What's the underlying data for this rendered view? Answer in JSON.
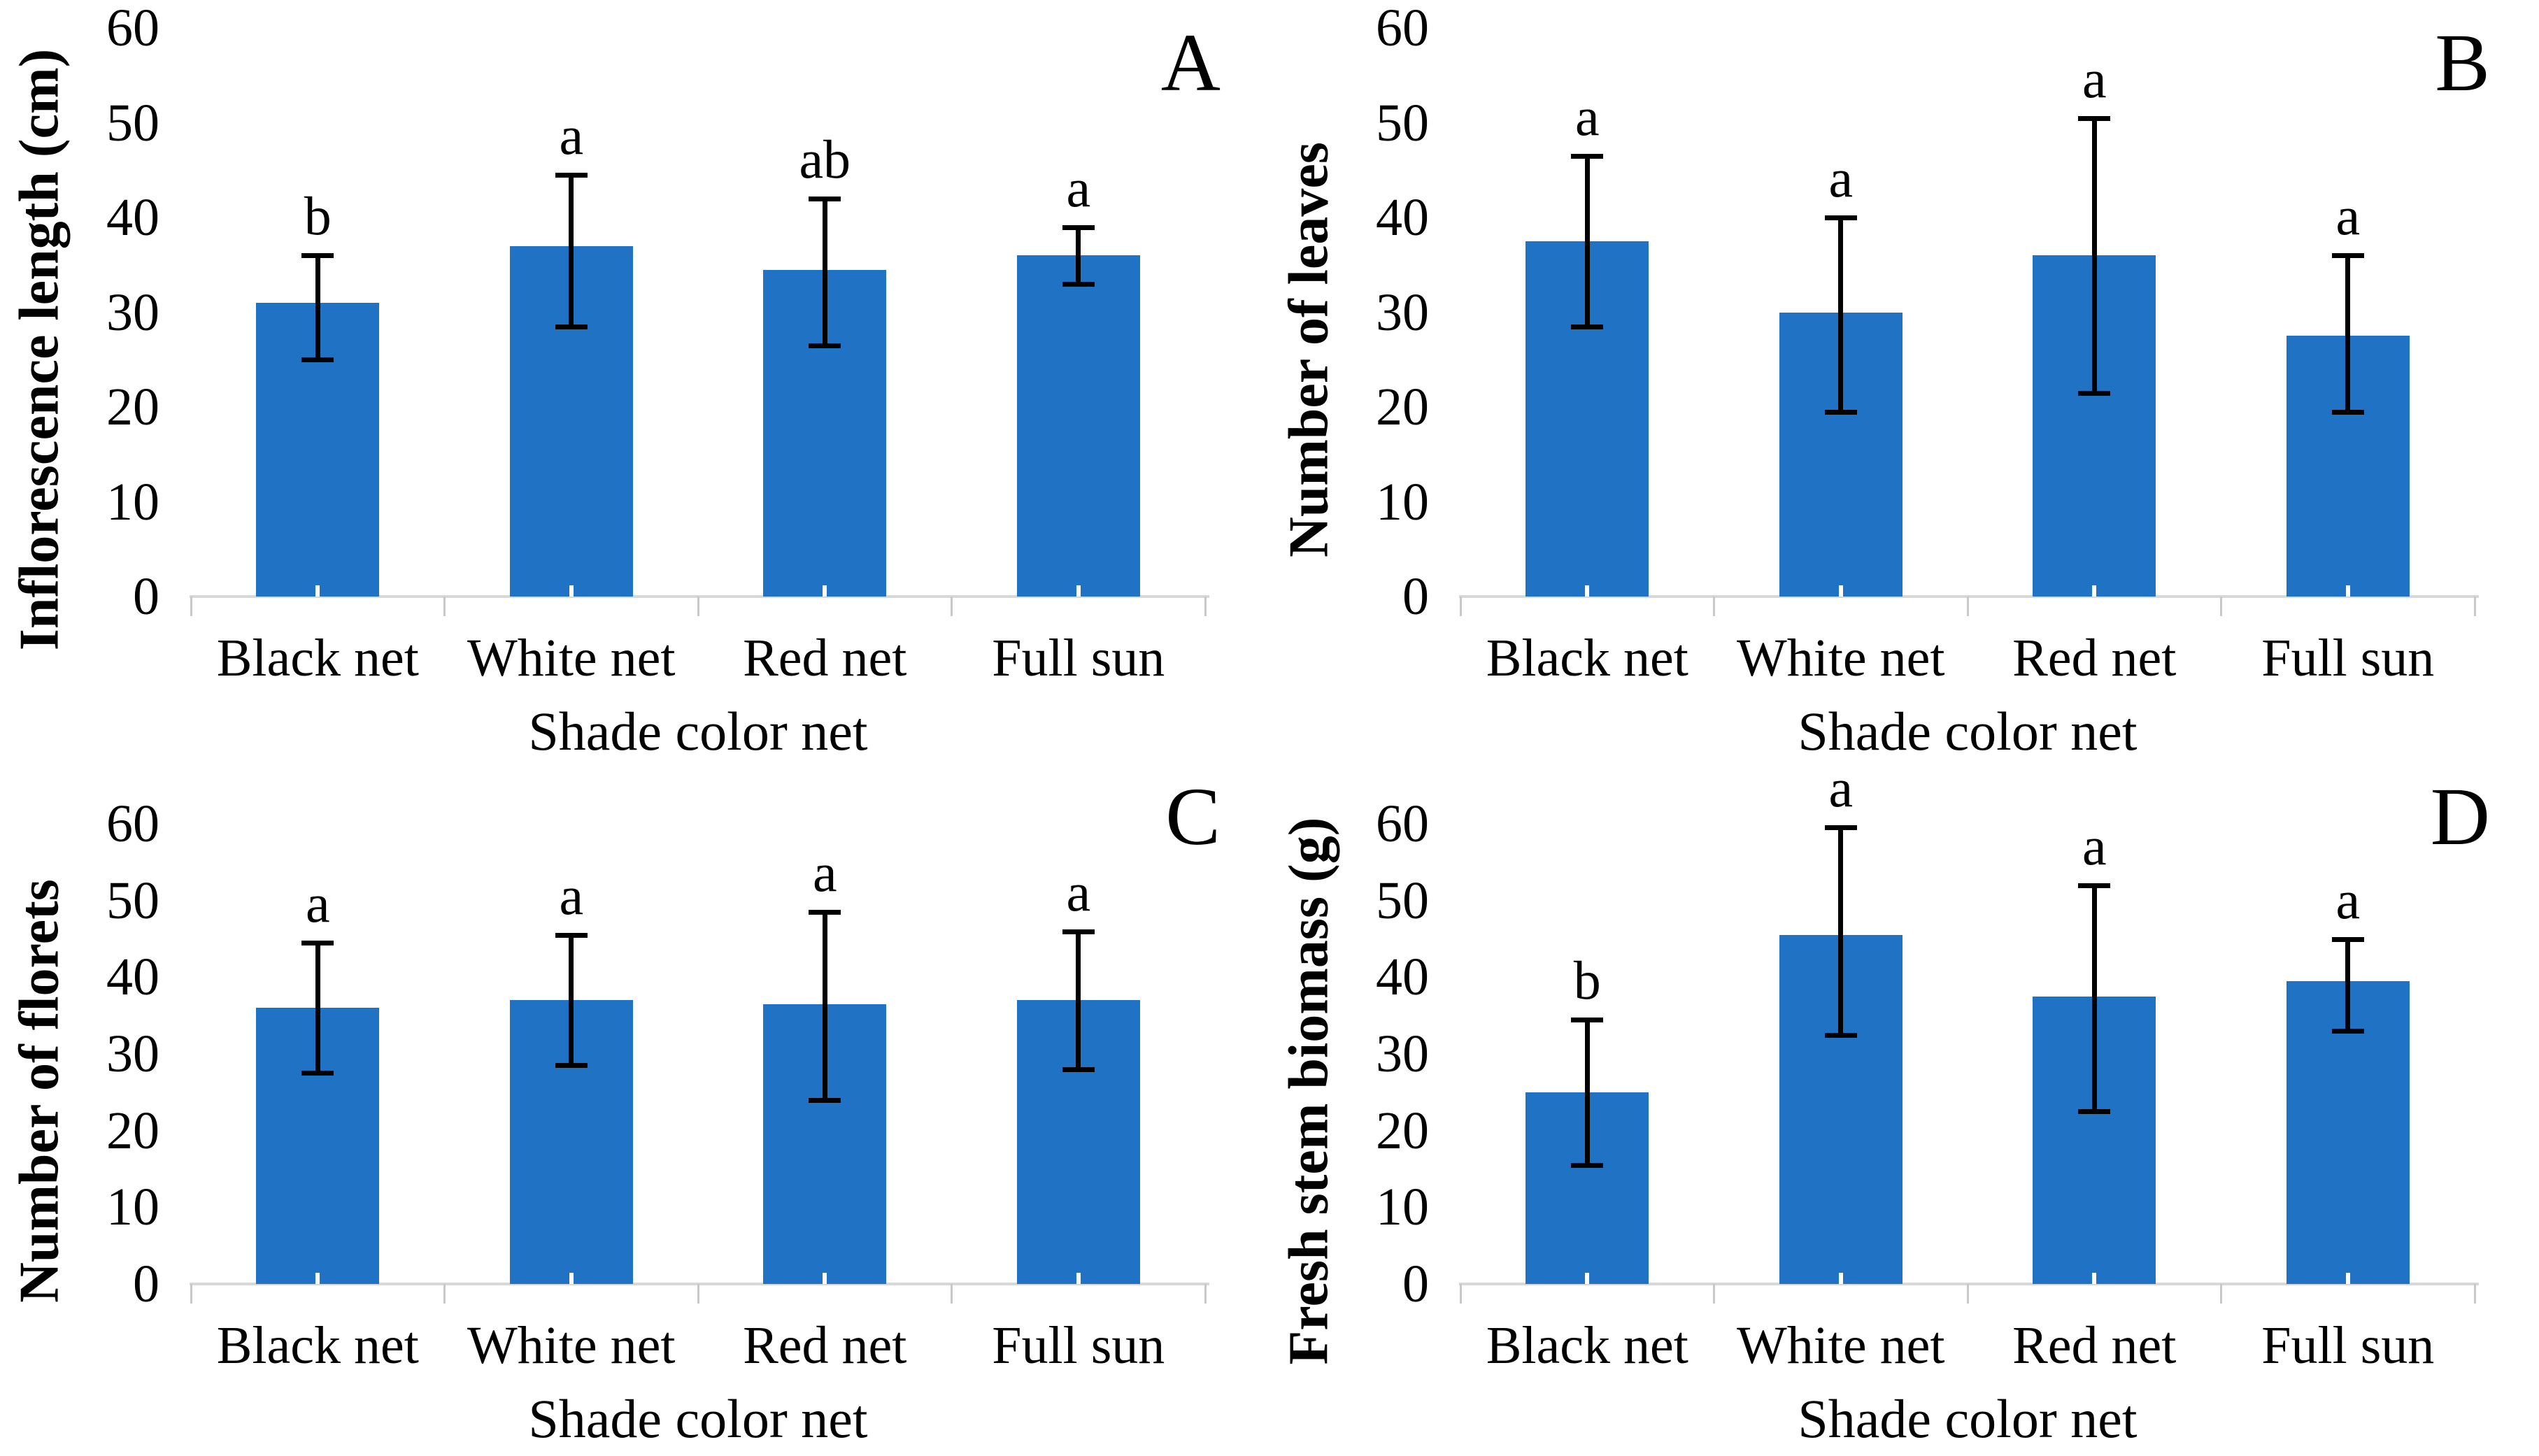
{
  "figure": {
    "background": "#ffffff",
    "bar_color": "#1F72C4",
    "error_color": "#000000",
    "axis_line_color": "#d8d8d8",
    "axis_tick_color": "#c9c9c9",
    "text_color": "#000000"
  },
  "chart_data": [
    {
      "type": "bar",
      "panel_label": "A",
      "title": "",
      "ylabel": "Inflorescence length (cm)",
      "xlabel": "Shade color net",
      "categories": [
        "Black net",
        "White net",
        "Red net",
        "Full sun"
      ],
      "values": [
        31,
        37,
        34.5,
        36
      ],
      "error_low": [
        25,
        28.5,
        26.5,
        33
      ],
      "error_high": [
        36,
        44.5,
        42,
        39
      ],
      "sig_letters": [
        "b",
        "a",
        "ab",
        "a"
      ],
      "ylim": [
        0,
        60
      ],
      "yticks": [
        0,
        10,
        20,
        30,
        40,
        50,
        60
      ],
      "grid": false,
      "legend": "none"
    },
    {
      "type": "bar",
      "panel_label": "B",
      "title": "",
      "ylabel": "Number of leaves",
      "xlabel": "Shade color net",
      "categories": [
        "Black net",
        "White net",
        "Red net",
        "Full sun"
      ],
      "values": [
        37.5,
        30,
        36,
        27.5
      ],
      "error_low": [
        28.5,
        19.5,
        21.5,
        19.5
      ],
      "error_high": [
        46.5,
        40,
        50.5,
        36
      ],
      "sig_letters": [
        "a",
        "a",
        "a",
        "a"
      ],
      "ylim": [
        0,
        60
      ],
      "yticks": [
        0,
        10,
        20,
        30,
        40,
        50,
        60
      ],
      "grid": false,
      "legend": "none"
    },
    {
      "type": "bar",
      "panel_label": "C",
      "title": "",
      "ylabel": "Number of florets",
      "xlabel": "Shade color net",
      "categories": [
        "Black net",
        "White net",
        "Red net",
        "Full sun"
      ],
      "values": [
        36,
        37,
        36.5,
        37
      ],
      "error_low": [
        27.5,
        28.5,
        24,
        28
      ],
      "error_high": [
        44.5,
        45.5,
        48.5,
        46
      ],
      "sig_letters": [
        "a",
        "a",
        "a",
        "a"
      ],
      "ylim": [
        0,
        60
      ],
      "yticks": [
        0,
        10,
        20,
        30,
        40,
        50,
        60
      ],
      "grid": false,
      "legend": "none"
    },
    {
      "type": "bar",
      "panel_label": "D",
      "title": "",
      "ylabel": "Fresh stem biomass (g)",
      "xlabel": "Shade color net",
      "categories": [
        "Black net",
        "White net",
        "Red net",
        "Full sun"
      ],
      "values": [
        25,
        45.5,
        37.5,
        39.5
      ],
      "error_low": [
        15.5,
        32.5,
        22.5,
        33
      ],
      "error_high": [
        34.5,
        59.5,
        52,
        45
      ],
      "sig_letters": [
        "b",
        "a",
        "a",
        "a"
      ],
      "ylim": [
        0,
        60
      ],
      "yticks": [
        0,
        10,
        20,
        30,
        40,
        50,
        60
      ],
      "grid": false,
      "legend": "none"
    }
  ]
}
